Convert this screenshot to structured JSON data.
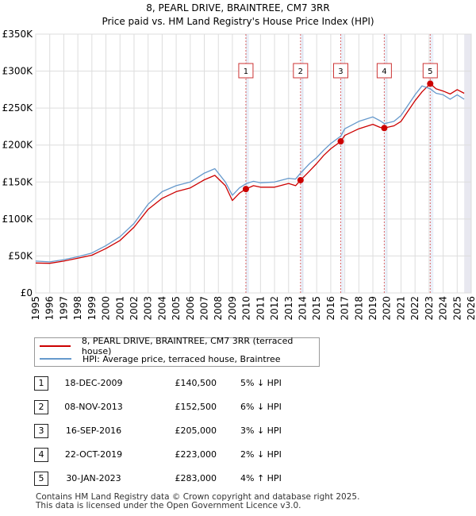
{
  "chart_data": {
    "type": "line",
    "title": "8, PEARL DRIVE, BRAINTREE, CM7 3RR",
    "subtitle": "Price paid vs. HM Land Registry's House Price Index (HPI)",
    "xlabel": "",
    "ylabel": "",
    "xlim": [
      1995,
      2026
    ],
    "ylim": [
      0,
      350000
    ],
    "y_ticks": [
      {
        "value": 0,
        "label": "£0"
      },
      {
        "value": 50000,
        "label": "£50K"
      },
      {
        "value": 100000,
        "label": "£100K"
      },
      {
        "value": 150000,
        "label": "£150K"
      },
      {
        "value": 200000,
        "label": "£200K"
      },
      {
        "value": 250000,
        "label": "£250K"
      },
      {
        "value": 300000,
        "label": "£300K"
      },
      {
        "value": 350000,
        "label": "£350K"
      }
    ],
    "x_ticks": [
      "1995",
      "1996",
      "1997",
      "1998",
      "1999",
      "2000",
      "2001",
      "2002",
      "2003",
      "2004",
      "2005",
      "2006",
      "2007",
      "2008",
      "2009",
      "2010",
      "2011",
      "2012",
      "2013",
      "2014",
      "2015",
      "2016",
      "2017",
      "2018",
      "2019",
      "2020",
      "2021",
      "2022",
      "2023",
      "2024",
      "2025",
      "2026"
    ],
    "grid": true,
    "legend_position": "below chart",
    "series": [
      {
        "name": "8, PEARL DRIVE, BRAINTREE, CM7 3RR (terraced house)",
        "color": "#cc0000",
        "x": [
          1995.0,
          1996.0,
          1997.0,
          1998.0,
          1999.0,
          2000.0,
          2001.0,
          2002.0,
          2003.0,
          2004.0,
          2005.0,
          2006.0,
          2007.0,
          2007.75,
          2008.5,
          2009.0,
          2009.5,
          2009.96,
          2010.5,
          2011.0,
          2012.0,
          2013.0,
          2013.5,
          2013.85,
          2014.5,
          2015.0,
          2015.5,
          2016.0,
          2016.71,
          2017.0,
          2018.0,
          2019.0,
          2019.5,
          2019.81,
          2020.5,
          2021.0,
          2022.0,
          2022.5,
          2023.08,
          2023.5,
          2024.0,
          2024.5,
          2025.0,
          2025.5
        ],
        "y": [
          40500,
          40000,
          43000,
          47000,
          51000,
          60000,
          71000,
          89000,
          113000,
          128000,
          137000,
          142000,
          153000,
          159000,
          145000,
          125000,
          135000,
          140500,
          145000,
          143000,
          143000,
          148000,
          145000,
          152500,
          165000,
          175000,
          186000,
          195000,
          205000,
          213000,
          222000,
          228000,
          224000,
          223000,
          226000,
          232000,
          260000,
          272000,
          283000,
          276000,
          273000,
          269000,
          275000,
          270000
        ]
      },
      {
        "name": "HPI: Average price, terraced house, Braintree",
        "color": "#6699cc",
        "x": [
          1995.0,
          1996.0,
          1997.0,
          1998.0,
          1999.0,
          2000.0,
          2001.0,
          2002.0,
          2003.0,
          2004.0,
          2005.0,
          2006.0,
          2007.0,
          2007.75,
          2008.5,
          2009.0,
          2009.5,
          2010.0,
          2010.5,
          2011.0,
          2012.0,
          2013.0,
          2013.5,
          2013.85,
          2014.5,
          2015.0,
          2015.5,
          2016.0,
          2016.71,
          2017.0,
          2018.0,
          2019.0,
          2019.5,
          2019.81,
          2020.5,
          2021.0,
          2022.0,
          2022.5,
          2023.08,
          2023.5,
          2024.0,
          2024.5,
          2025.0,
          2025.5
        ],
        "y": [
          43000,
          42000,
          45000,
          49000,
          54000,
          64000,
          76000,
          94000,
          120000,
          137000,
          145000,
          150000,
          162000,
          168000,
          150000,
          132000,
          142000,
          148000,
          151000,
          149000,
          150000,
          155000,
          154000,
          162000,
          175000,
          183000,
          193000,
          202000,
          212000,
          222000,
          232000,
          238000,
          233000,
          229000,
          232000,
          240000,
          268000,
          280000,
          276000,
          270000,
          268000,
          262000,
          268000,
          262000
        ]
      }
    ],
    "annotations": [
      {
        "label": "1",
        "x": 2009.96,
        "y": 140500
      },
      {
        "label": "2",
        "x": 2013.85,
        "y": 152500
      },
      {
        "label": "3",
        "x": 2016.71,
        "y": 205000
      },
      {
        "label": "4",
        "x": 2019.81,
        "y": 223000
      },
      {
        "label": "5",
        "x": 2023.08,
        "y": 283000
      }
    ],
    "forecast_shading_from": 2025.5
  },
  "legend": {
    "price_paid": "8, PEARL DRIVE, BRAINTREE, CM7 3RR (terraced house)",
    "hpi": "HPI: Average price, terraced house, Braintree"
  },
  "sales": [
    {
      "num": "1",
      "date": "18-DEC-2009",
      "price": "£140,500",
      "hpi": "5% ↓ HPI"
    },
    {
      "num": "2",
      "date": "08-NOV-2013",
      "price": "£152,500",
      "hpi": "6% ↓ HPI"
    },
    {
      "num": "3",
      "date": "16-SEP-2016",
      "price": "£205,000",
      "hpi": "3% ↓ HPI"
    },
    {
      "num": "4",
      "date": "22-OCT-2019",
      "price": "£223,000",
      "hpi": "2% ↓ HPI"
    },
    {
      "num": "5",
      "date": "30-JAN-2023",
      "price": "£283,000",
      "hpi": "4% ↑ HPI"
    }
  ],
  "footer": {
    "line1": "Contains HM Land Registry data © Crown copyright and database right 2025.",
    "line2": "This data is licensed under the Open Government Licence v3.0."
  }
}
